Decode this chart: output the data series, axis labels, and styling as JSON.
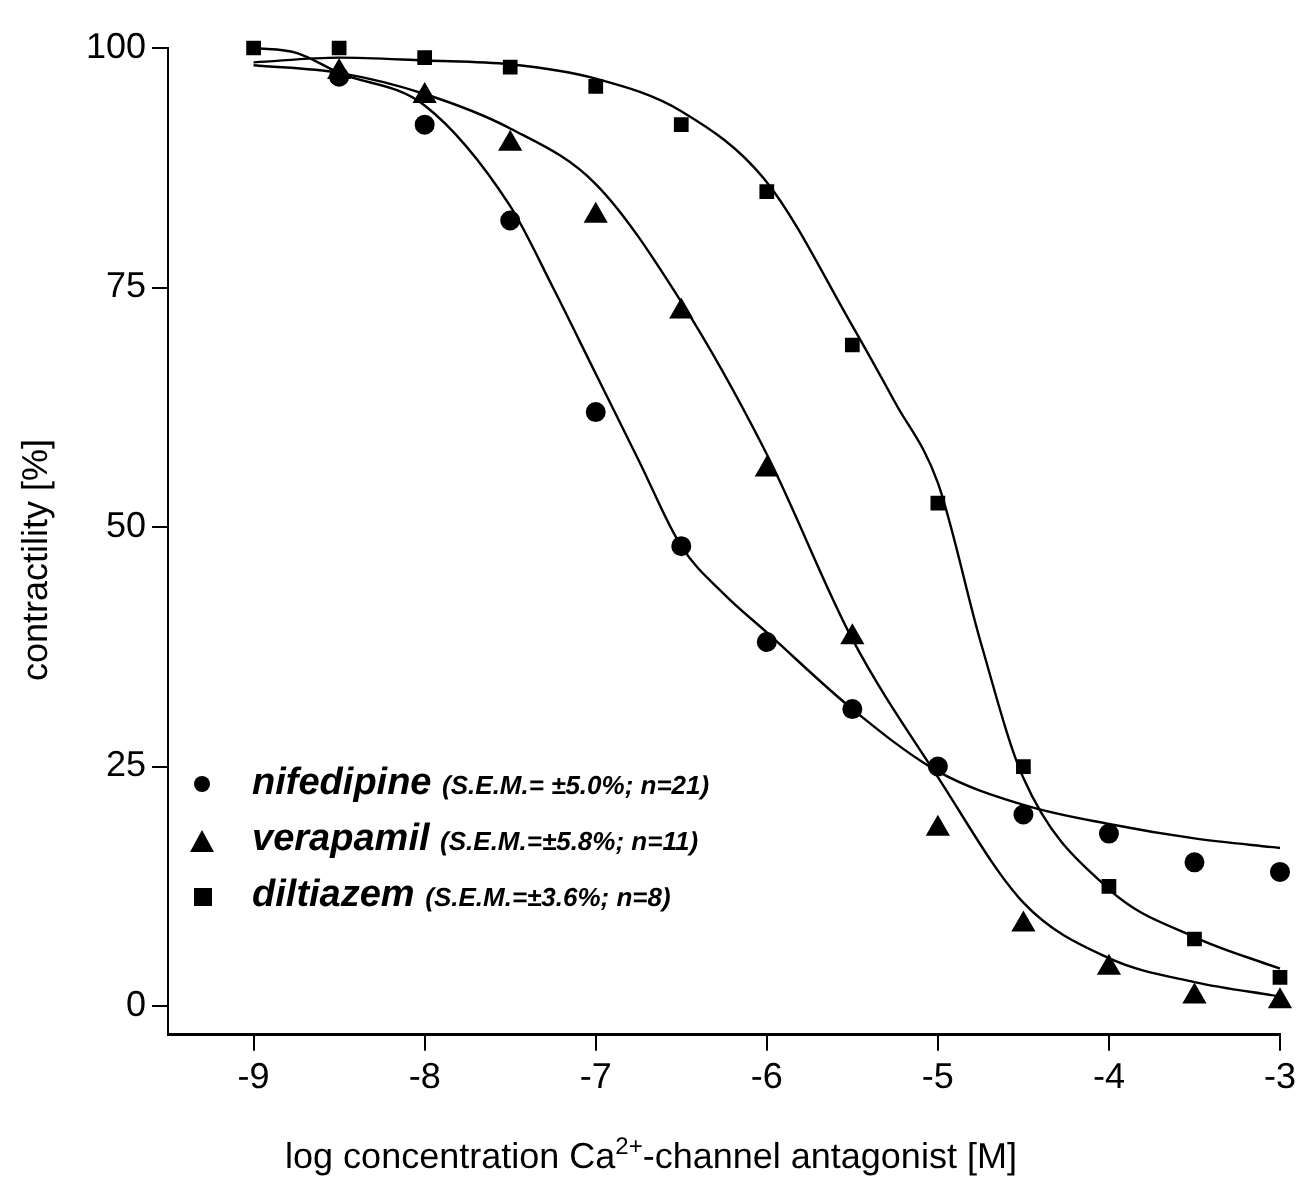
{
  "chart_data": {
    "type": "scatter",
    "xlabel": "log concentration Ca$^{2+}$-channel antagonist [M]",
    "ylabel": "contractility [%]",
    "xlim": [
      -9.5,
      -3
    ],
    "xticks": [
      -9,
      -8,
      -7,
      -6,
      -5,
      -4,
      -3
    ],
    "ylim": [
      -3,
      100
    ],
    "yticks": [
      0,
      25,
      50,
      75,
      100
    ],
    "grid": false,
    "legend": "bottom left",
    "series": [
      {
        "name": "nifedipine (S.E.M.= ±5.0%; n=21)",
        "type": "scatter",
        "marker": "circle",
        "color": "#000000",
        "x": [
          -8.5,
          -8,
          -7.5,
          -7,
          -6.5,
          -6,
          -5.5,
          -5,
          -4.5,
          -4,
          -3.5,
          -3
        ],
        "values": [
          97,
          92,
          82,
          62,
          48,
          38,
          31,
          25,
          20,
          18,
          15,
          14
        ]
      },
      {
        "name": "verapamil (S.E.M.=±5.8%; n=11)",
        "type": "scatter",
        "marker": "triangle",
        "color": "#000000",
        "x": [
          -8.5,
          -8,
          -7.5,
          -7,
          -6.5,
          -6,
          -5.5,
          -5,
          -4.5,
          -4,
          -3.5,
          -3
        ],
        "values": [
          97.5,
          95,
          90,
          82.5,
          72.5,
          56,
          38.5,
          18.5,
          8.5,
          4,
          1,
          0.5
        ]
      },
      {
        "name": "diltiazem (S.E.M.=±3.6%; n=8)",
        "type": "scatter",
        "marker": "square",
        "color": "#000000",
        "x": [
          -9,
          -8.5,
          -8,
          -7.5,
          -7,
          -6.5,
          -6,
          -5.5,
          -5,
          -4.5,
          -4,
          -3.5,
          -3
        ],
        "values": [
          100,
          100,
          99,
          98,
          96,
          92,
          85,
          69,
          52.5,
          25,
          12.5,
          7,
          3
        ]
      },
      {
        "type": "line",
        "marker": "none",
        "color": "#000000",
        "x": [
          -9,
          -8.75,
          -8.5,
          -8,
          -7.5,
          -7.25,
          -7,
          -6.75,
          -6.5,
          -6.25,
          -6,
          -5.5,
          -5,
          -4.5,
          -4,
          -3.5,
          -3
        ],
        "values": [
          100,
          99.5,
          97.4,
          94,
          83.5,
          75,
          66,
          57,
          48,
          43,
          39,
          31,
          24.5,
          21,
          19,
          17.5,
          16.5
        ]
      },
      {
        "type": "line",
        "marker": "none",
        "color": "#000000",
        "x": [
          -9,
          -8.5,
          -8,
          -7.5,
          -7,
          -6.5,
          -6,
          -5.5,
          -5,
          -4.5,
          -4,
          -3.5,
          -3
        ],
        "values": [
          98.2,
          97.4,
          95.2,
          91.6,
          85.8,
          73.5,
          57.6,
          38.3,
          23.9,
          10.8,
          5,
          2.5,
          1
        ]
      },
      {
        "type": "line",
        "marker": "none",
        "color": "#000000",
        "x": [
          -9,
          -8.5,
          -8,
          -7.5,
          -7,
          -6.5,
          -6,
          -5.5,
          -5.25,
          -5,
          -4.75,
          -4.5,
          -4,
          -3.5,
          -3
        ],
        "values": [
          98.5,
          99,
          98.7,
          98.3,
          96.8,
          93.4,
          86,
          71,
          63,
          54.6,
          38,
          23.8,
          12.2,
          7.2,
          3.9
        ]
      }
    ]
  }
}
